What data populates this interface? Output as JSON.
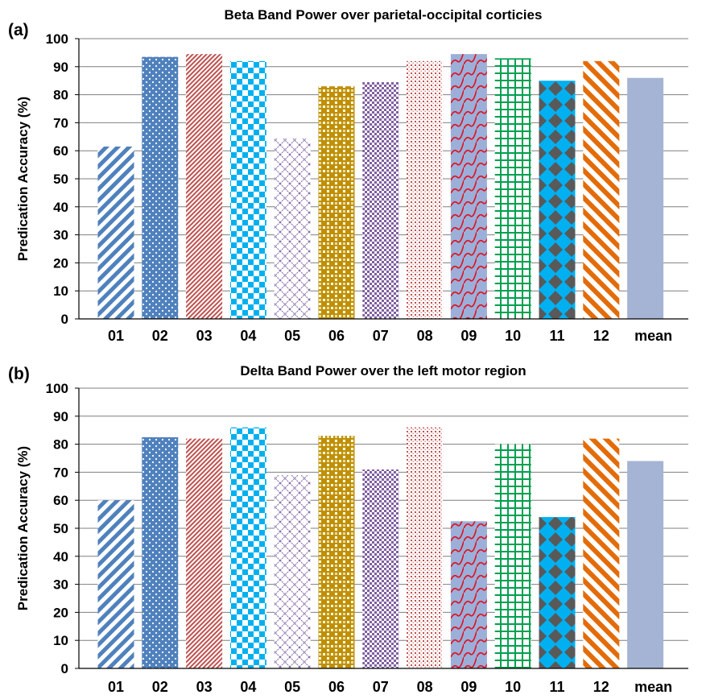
{
  "chart_data": [
    {
      "type": "bar",
      "panel_label": "(a)",
      "title": "Beta Band Power over parietal-occipital corticies",
      "ylabel": "Predication Accuracy (%)",
      "xlabel": "",
      "ylim": [
        0,
        100
      ],
      "yticks": [
        0,
        10,
        20,
        30,
        40,
        50,
        60,
        70,
        80,
        90,
        100
      ],
      "grid": "horizontal",
      "categories": [
        "01",
        "02",
        "03",
        "04",
        "05",
        "06",
        "07",
        "08",
        "09",
        "10",
        "11",
        "12",
        "mean"
      ],
      "values": [
        61.5,
        93.5,
        94.5,
        92,
        64.5,
        83,
        84.5,
        92,
        94.5,
        93,
        85,
        92,
        86
      ]
    },
    {
      "type": "bar",
      "panel_label": "(b)",
      "title": "Delta Band Power over the left motor region",
      "ylabel": "Predication Accuracy (%)",
      "xlabel": "",
      "ylim": [
        0,
        100
      ],
      "yticks": [
        0,
        10,
        20,
        30,
        40,
        50,
        60,
        70,
        80,
        90,
        100
      ],
      "grid": "horizontal",
      "categories": [
        "01",
        "02",
        "03",
        "04",
        "05",
        "06",
        "07",
        "08",
        "09",
        "10",
        "11",
        "12",
        "mean"
      ],
      "values": [
        60,
        82.5,
        82,
        86,
        69,
        83,
        71,
        86,
        52.5,
        80,
        54,
        82,
        74
      ]
    }
  ],
  "bar_colors": [
    "#4f81bd",
    "#4f81bd",
    "#c0504d",
    "#00b0f0",
    "#8064a2",
    "#c09000",
    "#7f5fa0",
    "#c0504d",
    "#9bafd9",
    "#00a050",
    "#595959",
    "#e36c09",
    "#a5b4d4"
  ],
  "bar_patterns": [
    "diagonal-stripes",
    "dots",
    "fine-diagonal",
    "checker",
    "diagonal-lattice",
    "woven-grid",
    "small-checker",
    "fine-dots",
    "wave-on-lilac",
    "grid-lines",
    "diamonds-on-blue",
    "wide-diagonal",
    "solid"
  ]
}
